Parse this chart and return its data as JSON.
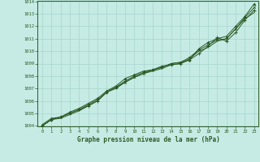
{
  "xlabel": "Graphe pression niveau de la mer (hPa)",
  "ylim": [
    1004,
    1014
  ],
  "xlim": [
    -0.5,
    23.5
  ],
  "yticks": [
    1004,
    1005,
    1006,
    1007,
    1008,
    1009,
    1010,
    1011,
    1012,
    1013,
    1014
  ],
  "xticks": [
    0,
    1,
    2,
    3,
    4,
    5,
    6,
    7,
    8,
    9,
    10,
    11,
    12,
    13,
    14,
    15,
    16,
    17,
    18,
    19,
    20,
    21,
    22,
    23
  ],
  "bg_color": "#c5ebe4",
  "grid_color": "#a8d5cc",
  "line_color": "#2d5a27",
  "line1": [
    1004.1,
    1004.6,
    1004.7,
    1005.1,
    1005.4,
    1005.8,
    1006.2,
    1006.8,
    1007.2,
    1007.8,
    1008.1,
    1008.4,
    1008.5,
    1008.7,
    1009.0,
    1009.1,
    1009.3,
    1010.2,
    1010.7,
    1011.0,
    1011.2,
    1012.0,
    1012.8,
    1013.8
  ],
  "line2": [
    1004.0,
    1004.5,
    1004.7,
    1005.0,
    1005.3,
    1005.6,
    1006.0,
    1006.7,
    1007.1,
    1007.6,
    1008.0,
    1008.3,
    1008.5,
    1008.8,
    1008.9,
    1009.0,
    1009.3,
    1009.8,
    1010.4,
    1011.1,
    1010.8,
    1011.5,
    1012.5,
    1013.3
  ],
  "line3": [
    1004.0,
    1004.5,
    1004.7,
    1005.0,
    1005.3,
    1005.7,
    1006.1,
    1006.7,
    1007.1,
    1007.5,
    1007.9,
    1008.2,
    1008.5,
    1008.7,
    1009.0,
    1009.1,
    1009.5,
    1010.1,
    1010.5,
    1010.9,
    1011.0,
    1011.8,
    1012.7,
    1013.5
  ],
  "line4": [
    1004.0,
    1004.5,
    1004.6,
    1004.9,
    1005.2,
    1005.6,
    1006.0,
    1006.7,
    1007.0,
    1007.5,
    1007.9,
    1008.2,
    1008.4,
    1008.6,
    1008.9,
    1009.0,
    1009.4,
    1010.0,
    1010.3,
    1010.8,
    1011.0,
    1011.8,
    1012.6,
    1013.1
  ]
}
